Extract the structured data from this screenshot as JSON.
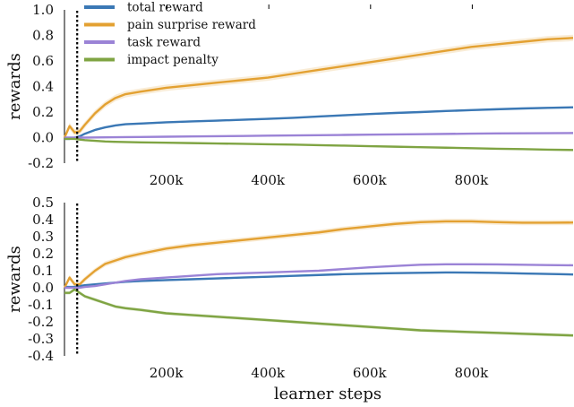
{
  "chart_data": [
    {
      "type": "line",
      "xlabel": "",
      "ylabel": "rewards",
      "xlim": [
        0,
        1000000
      ],
      "ylim": [
        -0.2,
        1.0
      ],
      "yticks": [
        "-0.2",
        "0.0",
        "0.2",
        "0.4",
        "0.6",
        "0.8",
        "1.0"
      ],
      "xticks": [
        200000,
        400000,
        600000,
        800000
      ],
      "xtick_labels": [
        "200k",
        "400k",
        "600k",
        "800k"
      ],
      "vline_x": 25000,
      "legend_placement": "top-left",
      "x": [
        0,
        10000,
        20000,
        30000,
        40000,
        60000,
        80000,
        100000,
        120000,
        150000,
        200000,
        250000,
        300000,
        350000,
        400000,
        450000,
        500000,
        550000,
        600000,
        650000,
        700000,
        750000,
        800000,
        850000,
        900000,
        950000,
        1000000
      ],
      "series": [
        {
          "name": "total reward",
          "color": "#3b78b5",
          "band": 0.008,
          "values": [
            -0.01,
            -0.01,
            0.0,
            0.01,
            0.03,
            0.06,
            0.08,
            0.095,
            0.105,
            0.11,
            0.12,
            0.127,
            0.133,
            0.14,
            0.147,
            0.155,
            0.165,
            0.175,
            0.185,
            0.193,
            0.2,
            0.208,
            0.215,
            0.222,
            0.228,
            0.233,
            0.237
          ]
        },
        {
          "name": "pain surprise reward",
          "color": "#e3a132",
          "band": 0.025,
          "values": [
            0.0,
            0.09,
            0.04,
            0.05,
            0.1,
            0.19,
            0.26,
            0.31,
            0.34,
            0.36,
            0.39,
            0.41,
            0.43,
            0.45,
            0.47,
            0.5,
            0.53,
            0.56,
            0.59,
            0.62,
            0.65,
            0.68,
            0.71,
            0.73,
            0.75,
            0.77,
            0.78
          ]
        },
        {
          "name": "task reward",
          "color": "#9b83d6",
          "band": 0.005,
          "values": [
            0.0,
            0.0,
            0.0,
            0.0,
            0.0,
            0.001,
            0.002,
            0.003,
            0.004,
            0.005,
            0.007,
            0.009,
            0.011,
            0.013,
            0.015,
            0.017,
            0.019,
            0.021,
            0.023,
            0.025,
            0.027,
            0.029,
            0.031,
            0.033,
            0.034,
            0.035,
            0.036
          ]
        },
        {
          "name": "impact penalty",
          "color": "#7fa443",
          "band": 0.005,
          "values": [
            -0.01,
            -0.01,
            -0.01,
            -0.015,
            -0.02,
            -0.025,
            -0.03,
            -0.033,
            -0.035,
            -0.037,
            -0.04,
            -0.043,
            -0.046,
            -0.049,
            -0.052,
            -0.055,
            -0.059,
            -0.063,
            -0.067,
            -0.071,
            -0.075,
            -0.079,
            -0.083,
            -0.087,
            -0.09,
            -0.094,
            -0.097
          ]
        }
      ]
    },
    {
      "type": "line",
      "xlabel": "learner steps",
      "ylabel": "rewards",
      "xlim": [
        0,
        1000000
      ],
      "ylim": [
        -0.4,
        0.5
      ],
      "yticks": [
        "-0.4",
        "-0.3",
        "-0.2",
        "-0.1",
        "0.0",
        "0.1",
        "0.2",
        "0.3",
        "0.4",
        "0.5"
      ],
      "xticks": [
        200000,
        400000,
        600000,
        800000
      ],
      "xtick_labels": [
        "200k",
        "400k",
        "600k",
        "800k"
      ],
      "vline_x": 25000,
      "x": [
        0,
        10000,
        20000,
        30000,
        40000,
        60000,
        80000,
        100000,
        120000,
        150000,
        200000,
        250000,
        300000,
        350000,
        400000,
        450000,
        500000,
        550000,
        600000,
        650000,
        700000,
        750000,
        800000,
        850000,
        900000,
        950000,
        1000000
      ],
      "series": [
        {
          "name": "total reward",
          "color": "#3b78b5",
          "band": 0.006,
          "values": [
            0.005,
            0.005,
            0.005,
            0.01,
            0.015,
            0.02,
            0.025,
            0.03,
            0.035,
            0.04,
            0.045,
            0.05,
            0.055,
            0.06,
            0.065,
            0.07,
            0.075,
            0.08,
            0.083,
            0.086,
            0.088,
            0.09,
            0.089,
            0.087,
            0.084,
            0.081,
            0.078
          ]
        },
        {
          "name": "pain surprise reward",
          "color": "#e3a132",
          "band": 0.015,
          "values": [
            0.0,
            0.06,
            0.02,
            0.02,
            0.05,
            0.1,
            0.14,
            0.16,
            0.18,
            0.2,
            0.23,
            0.25,
            0.265,
            0.28,
            0.295,
            0.31,
            0.325,
            0.345,
            0.36,
            0.375,
            0.385,
            0.39,
            0.39,
            0.385,
            0.382,
            0.382,
            0.383
          ]
        },
        {
          "name": "task reward",
          "color": "#9b83d6",
          "band": 0.005,
          "values": [
            0.0,
            0.0,
            0.0,
            0.0,
            0.005,
            0.01,
            0.02,
            0.03,
            0.04,
            0.05,
            0.06,
            0.07,
            0.08,
            0.085,
            0.09,
            0.095,
            0.1,
            0.11,
            0.12,
            0.128,
            0.135,
            0.138,
            0.138,
            0.137,
            0.135,
            0.133,
            0.132
          ]
        },
        {
          "name": "impact penalty",
          "color": "#7fa443",
          "band": 0.01,
          "values": [
            -0.03,
            -0.03,
            -0.01,
            -0.03,
            -0.05,
            -0.07,
            -0.09,
            -0.11,
            -0.12,
            -0.13,
            -0.15,
            -0.16,
            -0.17,
            -0.18,
            -0.19,
            -0.2,
            -0.21,
            -0.22,
            -0.23,
            -0.24,
            -0.25,
            -0.255,
            -0.26,
            -0.265,
            -0.27,
            -0.275,
            -0.28
          ]
        }
      ]
    }
  ]
}
